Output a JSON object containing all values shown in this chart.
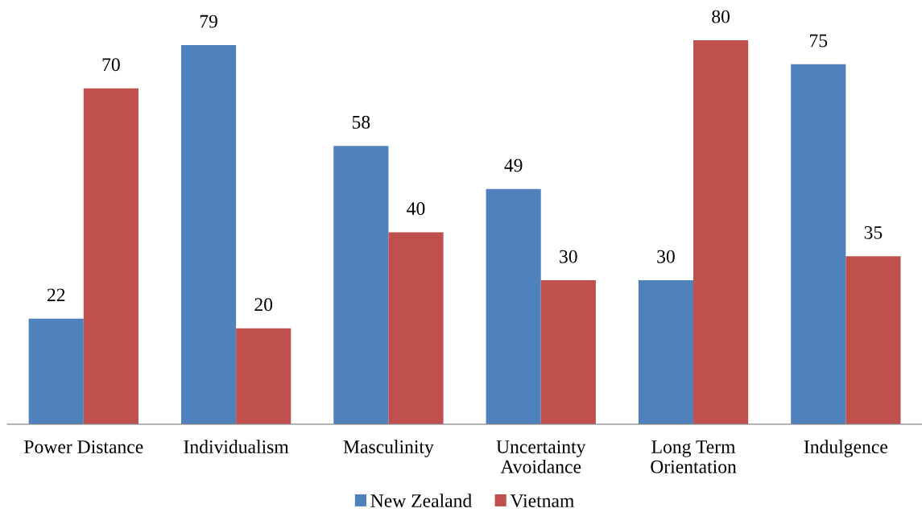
{
  "chart_data": {
    "type": "bar",
    "categories": [
      "Power Distance",
      "Individualism",
      "Masculinity",
      "Uncertainty\nAvoidance",
      "Long Term\nOrientation",
      "Indulgence"
    ],
    "series": [
      {
        "name": "New Zealand",
        "color": "#4f81bd",
        "values": [
          22,
          79,
          58,
          49,
          30,
          75
        ]
      },
      {
        "name": "Vietnam",
        "color": "#c0504d",
        "values": [
          70,
          20,
          40,
          30,
          80,
          35
        ]
      }
    ],
    "data_labels": true,
    "legend": "bottom",
    "grid": false
  }
}
